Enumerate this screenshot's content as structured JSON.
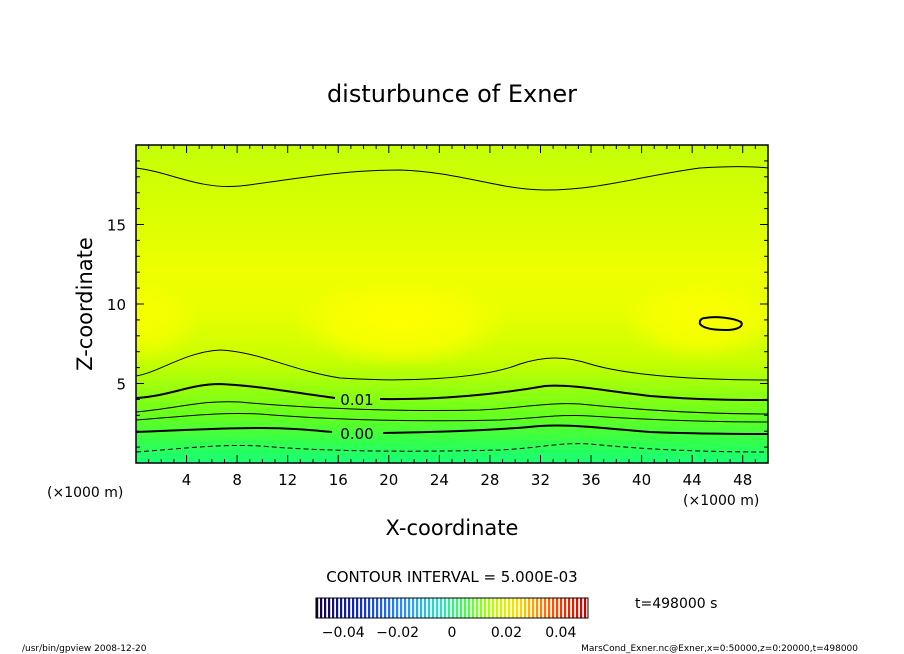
{
  "chart_data": {
    "type": "heatmap",
    "title": "disturbunce of Exner",
    "xlabel": "X-coordinate",
    "ylabel": "Z-coordinate",
    "x_unit_left": "(×1000 m)",
    "x_unit_right": "(×1000 m)",
    "xlim": [
      0,
      50
    ],
    "ylim": [
      0,
      20
    ],
    "x_ticks": [
      "4",
      "8",
      "12",
      "16",
      "20",
      "24",
      "28",
      "32",
      "36",
      "40",
      "44",
      "48"
    ],
    "y_ticks": [
      "5",
      "10",
      "15"
    ],
    "contour_interval_label": "CONTOUR INTERVAL = 5.000E-03",
    "contour_labels": [
      "0.01",
      "0.00"
    ],
    "time_label": "t=498000 s",
    "colorbar": {
      "range": [
        -0.05,
        0.05
      ],
      "tick_labels": [
        "−0.04",
        "−0.02",
        "0",
        "0.02",
        "0.04"
      ],
      "tick_values": [
        -0.04,
        -0.02,
        0,
        0.02,
        0.04
      ]
    },
    "footer_left": "/usr/bin/gpview   2008-12-20",
    "footer_right": "MarsCond_Exner.nc@Exner,x=0:50000,z=0:20000,t=498000",
    "colors": {
      "low": "#00ff80",
      "mid": "#80ff00",
      "high": "#ffff00"
    }
  }
}
